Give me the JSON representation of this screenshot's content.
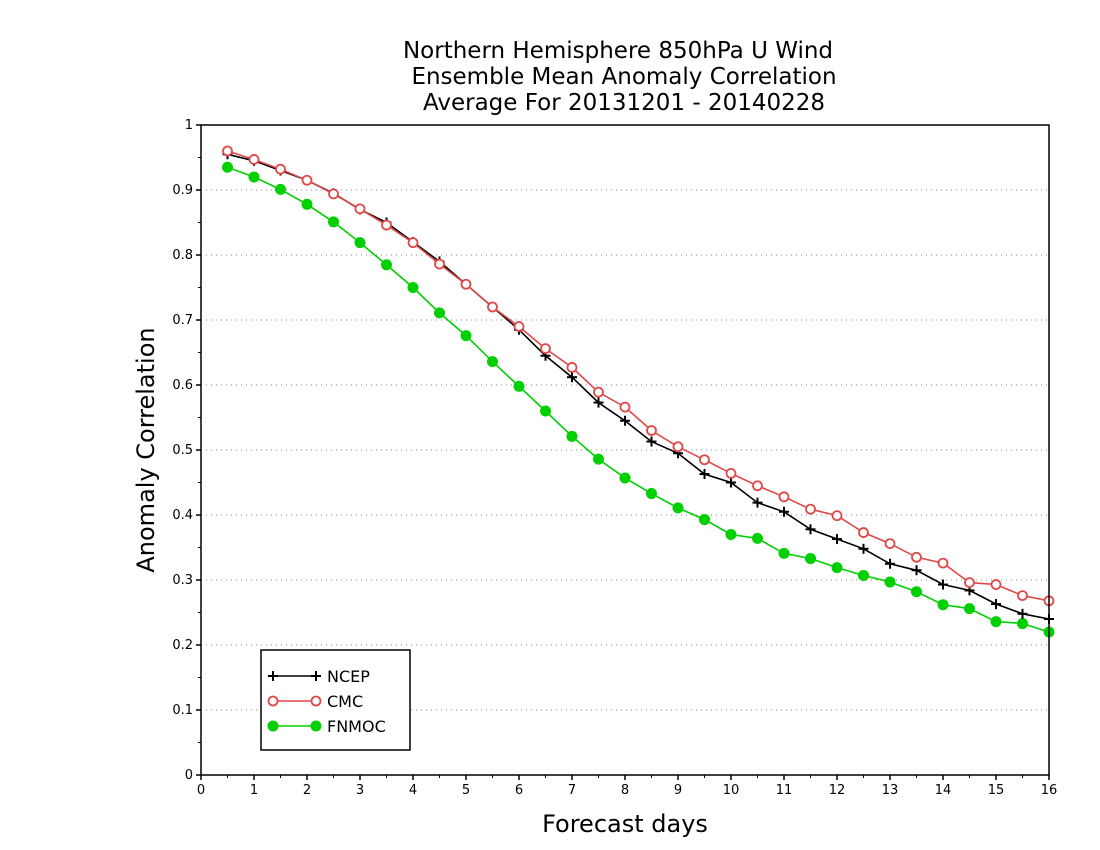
{
  "chart_data": {
    "type": "line",
    "title_lines": [
      "Northern Hemisphere 850hPa U Wind",
      "Ensemble Mean Anomaly Correlation",
      "Average For 20131201 - 20140228"
    ],
    "xlabel": "Forecast days",
    "ylabel": "Anomaly Correlation",
    "xlim": [
      0,
      16
    ],
    "ylim": [
      0,
      1
    ],
    "x_ticks": [
      "0",
      "1",
      "2",
      "3",
      "4",
      "5",
      "6",
      "7",
      "8",
      "9",
      "10",
      "11",
      "12",
      "13",
      "14",
      "15",
      "16"
    ],
    "y_ticks": [
      "0",
      "0.1",
      "0.2",
      "0.3",
      "0.4",
      "0.5",
      "0.6",
      "0.7",
      "0.8",
      "0.9",
      "1"
    ],
    "grid": "horizontal dotted",
    "legend_position": "bottom-left",
    "x": [
      0.5,
      1,
      1.5,
      2,
      2.5,
      3,
      3.5,
      4,
      4.5,
      5,
      5.5,
      6,
      6.5,
      7,
      7.5,
      8,
      8.5,
      9,
      9.5,
      10,
      10.5,
      11,
      11.5,
      12,
      12.5,
      13,
      13.5,
      14,
      14.5,
      15,
      15.5,
      16
    ],
    "series": [
      {
        "name": "NCEP",
        "color": "#000000",
        "marker": "plus",
        "values": [
          0.955,
          0.945,
          0.93,
          0.915,
          0.895,
          0.87,
          0.85,
          0.82,
          0.79,
          0.755,
          0.72,
          0.685,
          0.645,
          0.612,
          0.573,
          0.545,
          0.513,
          0.495,
          0.463,
          0.45,
          0.419,
          0.405,
          0.378,
          0.363,
          0.348,
          0.325,
          0.315,
          0.293,
          0.284,
          0.263,
          0.248,
          0.24
        ]
      },
      {
        "name": "CMC",
        "color": "#e04848",
        "marker": "open-circle",
        "values": [
          0.96,
          0.947,
          0.932,
          0.915,
          0.894,
          0.871,
          0.846,
          0.819,
          0.786,
          0.755,
          0.72,
          0.69,
          0.656,
          0.627,
          0.589,
          0.566,
          0.53,
          0.505,
          0.485,
          0.464,
          0.445,
          0.428,
          0.409,
          0.399,
          0.373,
          0.356,
          0.335,
          0.326,
          0.296,
          0.293,
          0.276,
          0.268
        ]
      },
      {
        "name": "FNMOC",
        "color": "#00d000",
        "marker": "filled-circle",
        "values": [
          0.935,
          0.92,
          0.901,
          0.878,
          0.851,
          0.819,
          0.785,
          0.75,
          0.711,
          0.676,
          0.636,
          0.598,
          0.56,
          0.521,
          0.486,
          0.457,
          0.433,
          0.411,
          0.393,
          0.37,
          0.364,
          0.341,
          0.333,
          0.319,
          0.307,
          0.297,
          0.282,
          0.262,
          0.256,
          0.236,
          0.233,
          0.22
        ]
      }
    ]
  }
}
